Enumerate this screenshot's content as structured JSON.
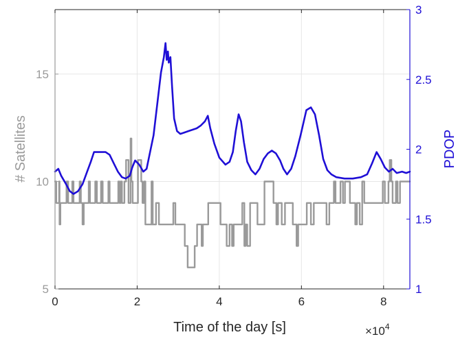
{
  "chart_data": {
    "type": "line",
    "xlabel": "Time of the day [s]",
    "x_exponent_label": "×10",
    "x_exponent_power": "4",
    "x_ticks": [
      0,
      20000,
      40000,
      60000,
      80000
    ],
    "x_tick_labels": [
      "0",
      "2",
      "4",
      "6",
      "8"
    ],
    "xlim": [
      0,
      86400
    ],
    "grid": true,
    "colors": {
      "satellites": "#9a9a9a",
      "pdop": "#1f0fd6",
      "grid": "#e6e6e6",
      "axes": "#262626"
    },
    "left_axis": {
      "label": "# Satellites",
      "ylim": [
        5,
        18
      ],
      "ticks": [
        5,
        10,
        15
      ],
      "tick_labels": [
        "5",
        "10",
        "15"
      ]
    },
    "right_axis": {
      "label": "PDOP",
      "ylim": [
        1,
        3
      ],
      "ticks": [
        1,
        1.5,
        2,
        2.5,
        3
      ],
      "tick_labels": [
        "1",
        "1.5",
        "2",
        "2.5",
        "3"
      ]
    },
    "series": [
      {
        "key": "satellites",
        "axis": "left",
        "step": true,
        "points": [
          [
            0,
            10
          ],
          [
            300,
            9
          ],
          [
            1000,
            10
          ],
          [
            1100,
            8
          ],
          [
            1300,
            9
          ],
          [
            2800,
            10
          ],
          [
            3200,
            9
          ],
          [
            4200,
            10
          ],
          [
            4500,
            9
          ],
          [
            6000,
            10
          ],
          [
            6300,
            9
          ],
          [
            6700,
            8
          ],
          [
            7000,
            9
          ],
          [
            8200,
            10
          ],
          [
            8500,
            9
          ],
          [
            9800,
            10
          ],
          [
            10200,
            9
          ],
          [
            11200,
            10
          ],
          [
            11600,
            9
          ],
          [
            13000,
            10
          ],
          [
            13300,
            9
          ],
          [
            15400,
            10
          ],
          [
            15700,
            9
          ],
          [
            16000,
            10
          ],
          [
            16300,
            9
          ],
          [
            16900,
            10
          ],
          [
            17300,
            11
          ],
          [
            17900,
            9
          ],
          [
            18400,
            12
          ],
          [
            18600,
            10
          ],
          [
            18900,
            9
          ],
          [
            20200,
            11
          ],
          [
            21000,
            10
          ],
          [
            21300,
            9
          ],
          [
            21700,
            10
          ],
          [
            22000,
            8
          ],
          [
            23500,
            10
          ],
          [
            23800,
            8
          ],
          [
            24600,
            9
          ],
          [
            25300,
            8
          ],
          [
            28800,
            9
          ],
          [
            29300,
            8
          ],
          [
            31600,
            7
          ],
          [
            32300,
            6
          ],
          [
            34000,
            7
          ],
          [
            34600,
            8
          ],
          [
            35700,
            7
          ],
          [
            36000,
            8
          ],
          [
            37300,
            9
          ],
          [
            40300,
            8
          ],
          [
            41800,
            7
          ],
          [
            42500,
            8
          ],
          [
            43100,
            7
          ],
          [
            43500,
            8
          ],
          [
            45600,
            9
          ],
          [
            46100,
            7
          ],
          [
            46400,
            8
          ],
          [
            46800,
            7
          ],
          [
            47500,
            9
          ],
          [
            49300,
            8
          ],
          [
            51000,
            10
          ],
          [
            53200,
            9
          ],
          [
            53900,
            8
          ],
          [
            54300,
            9
          ],
          [
            55200,
            8
          ],
          [
            56000,
            9
          ],
          [
            57900,
            8
          ],
          [
            58800,
            7
          ],
          [
            59200,
            8
          ],
          [
            61300,
            9
          ],
          [
            62300,
            8
          ],
          [
            63000,
            9
          ],
          [
            66100,
            8
          ],
          [
            66800,
            9
          ],
          [
            67900,
            10
          ],
          [
            68300,
            9
          ],
          [
            69500,
            10
          ],
          [
            70100,
            9
          ],
          [
            70600,
            10
          ],
          [
            71800,
            9
          ],
          [
            73100,
            8
          ],
          [
            73500,
            9
          ],
          [
            74200,
            8
          ],
          [
            74800,
            10
          ],
          [
            75300,
            9
          ],
          [
            79800,
            10
          ],
          [
            80300,
            9
          ],
          [
            81200,
            10
          ],
          [
            81500,
            11
          ],
          [
            81900,
            10
          ],
          [
            82200,
            9
          ],
          [
            83000,
            10
          ],
          [
            83400,
            9
          ],
          [
            84000,
            10
          ],
          [
            86400,
            10
          ]
        ]
      },
      {
        "key": "pdop",
        "axis": "right",
        "step": false,
        "points": [
          [
            0,
            1.84
          ],
          [
            800,
            1.86
          ],
          [
            1500,
            1.81
          ],
          [
            2500,
            1.76
          ],
          [
            3600,
            1.7
          ],
          [
            4500,
            1.68
          ],
          [
            5600,
            1.7
          ],
          [
            6700,
            1.75
          ],
          [
            7700,
            1.83
          ],
          [
            8700,
            1.91
          ],
          [
            9500,
            1.98
          ],
          [
            10300,
            1.98
          ],
          [
            11200,
            1.98
          ],
          [
            12300,
            1.98
          ],
          [
            13300,
            1.96
          ],
          [
            14300,
            1.9
          ],
          [
            15300,
            1.84
          ],
          [
            16300,
            1.8
          ],
          [
            17200,
            1.79
          ],
          [
            18200,
            1.81
          ],
          [
            18800,
            1.87
          ],
          [
            19500,
            1.92
          ],
          [
            20500,
            1.89
          ],
          [
            21500,
            1.84
          ],
          [
            22300,
            1.86
          ],
          [
            23000,
            1.96
          ],
          [
            24000,
            2.1
          ],
          [
            25000,
            2.35
          ],
          [
            25800,
            2.55
          ],
          [
            26500,
            2.66
          ],
          [
            26900,
            2.76
          ],
          [
            27200,
            2.64
          ],
          [
            27500,
            2.7
          ],
          [
            27700,
            2.62
          ],
          [
            28100,
            2.66
          ],
          [
            28500,
            2.45
          ],
          [
            29000,
            2.22
          ],
          [
            29700,
            2.13
          ],
          [
            30500,
            2.11
          ],
          [
            31500,
            2.12
          ],
          [
            32500,
            2.13
          ],
          [
            33500,
            2.14
          ],
          [
            34500,
            2.15
          ],
          [
            35500,
            2.17
          ],
          [
            36500,
            2.2
          ],
          [
            37200,
            2.24
          ],
          [
            37800,
            2.15
          ],
          [
            38800,
            2.04
          ],
          [
            40000,
            1.94
          ],
          [
            41500,
            1.89
          ],
          [
            42500,
            1.91
          ],
          [
            43300,
            1.98
          ],
          [
            44000,
            2.13
          ],
          [
            44700,
            2.25
          ],
          [
            45300,
            2.2
          ],
          [
            46000,
            2.05
          ],
          [
            46800,
            1.91
          ],
          [
            47800,
            1.85
          ],
          [
            48800,
            1.82
          ],
          [
            49800,
            1.86
          ],
          [
            50800,
            1.93
          ],
          [
            51800,
            1.97
          ],
          [
            52800,
            1.99
          ],
          [
            53800,
            1.97
          ],
          [
            54800,
            1.92
          ],
          [
            55600,
            1.86
          ],
          [
            56500,
            1.82
          ],
          [
            57500,
            1.86
          ],
          [
            58500,
            1.95
          ],
          [
            59800,
            2.1
          ],
          [
            61200,
            2.28
          ],
          [
            62300,
            2.3
          ],
          [
            63300,
            2.25
          ],
          [
            64300,
            2.1
          ],
          [
            65300,
            1.93
          ],
          [
            66300,
            1.85
          ],
          [
            67300,
            1.82
          ],
          [
            68500,
            1.8
          ],
          [
            70500,
            1.79
          ],
          [
            72500,
            1.79
          ],
          [
            74500,
            1.8
          ],
          [
            76000,
            1.82
          ],
          [
            77200,
            1.9
          ],
          [
            78300,
            1.98
          ],
          [
            79300,
            1.93
          ],
          [
            80300,
            1.87
          ],
          [
            81300,
            1.84
          ],
          [
            82200,
            1.86
          ],
          [
            83200,
            1.83
          ],
          [
            84500,
            1.84
          ],
          [
            85500,
            1.83
          ],
          [
            86400,
            1.84
          ]
        ]
      }
    ]
  }
}
